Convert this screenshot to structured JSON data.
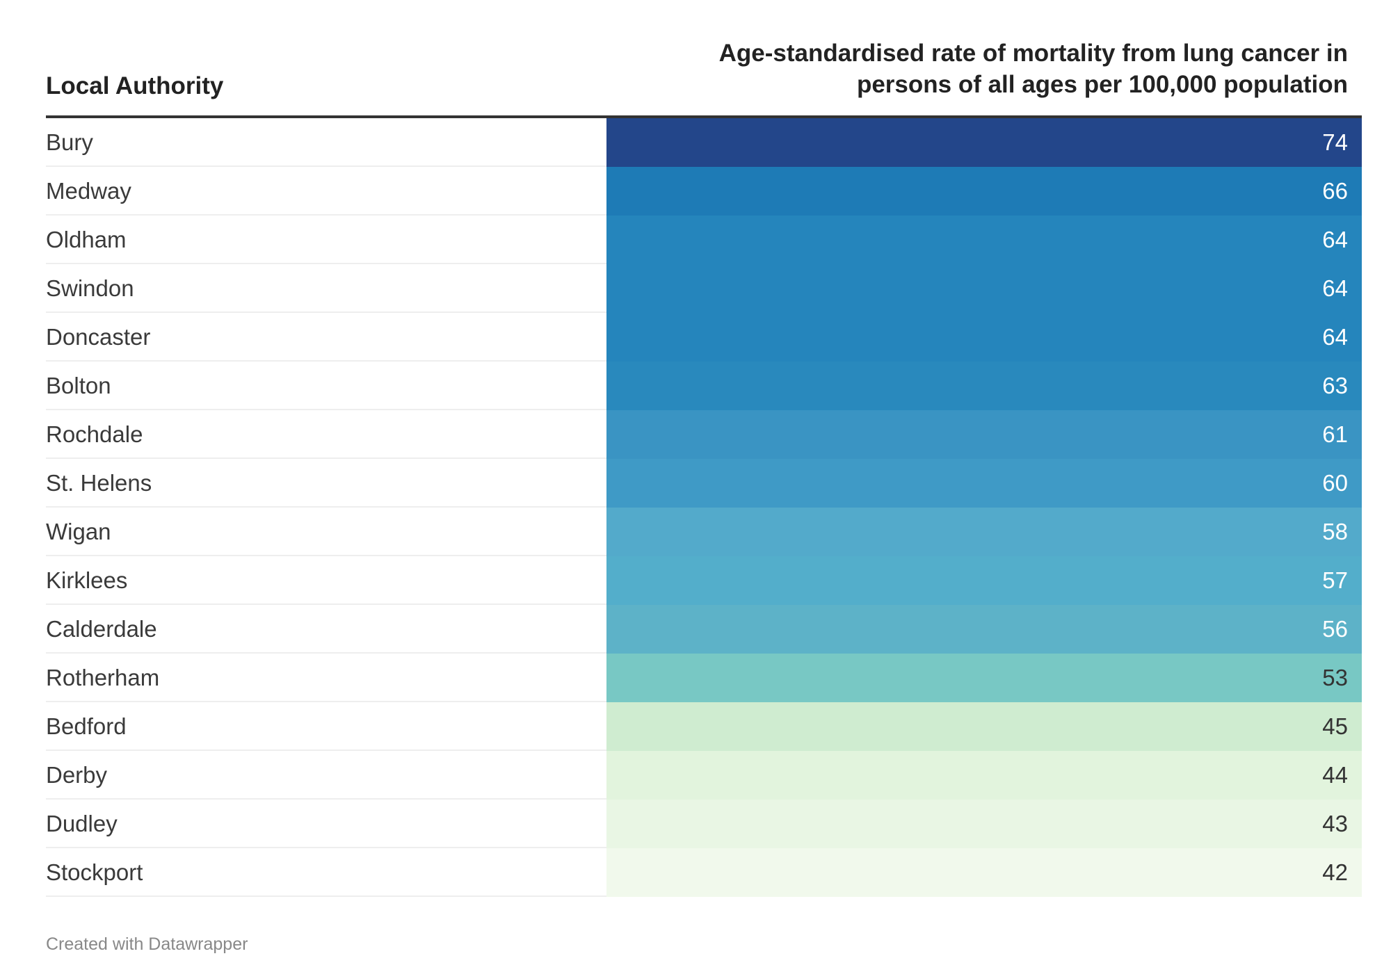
{
  "table": {
    "header_label": "Local Authority",
    "header_value_line1": "Age-standardised rate of mortality from lung cancer in",
    "header_value_line2": "persons of all ages per 100,000 population"
  },
  "chart_data": {
    "type": "table",
    "title": "",
    "columns": [
      "Local Authority",
      "Age-standardised rate of mortality from lung cancer in persons of all ages per 100,000 population"
    ],
    "categories": [
      "Bury",
      "Medway",
      "Oldham",
      "Swindon",
      "Doncaster",
      "Bolton",
      "Rochdale",
      "St. Helens",
      "Wigan",
      "Kirklees",
      "Calderdale",
      "Rotherham",
      "Bedford",
      "Derby",
      "Dudley",
      "Stockport"
    ],
    "values": [
      74,
      66,
      64,
      64,
      64,
      63,
      61,
      60,
      58,
      57,
      56,
      53,
      45,
      44,
      43,
      42
    ],
    "colors": [
      "#23468a",
      "#1e7bb6",
      "#2585bc",
      "#2585bc",
      "#2585bc",
      "#2989bd",
      "#3a94c3",
      "#3f9ac6",
      "#53aacb",
      "#53aecb",
      "#5db2c8",
      "#78c8c4",
      "#cfecd0",
      "#e2f4dd",
      "#e9f6e4",
      "#f1f9ec"
    ],
    "text_colors": [
      "#ffffff",
      "#ffffff",
      "#ffffff",
      "#ffffff",
      "#ffffff",
      "#ffffff",
      "#ffffff",
      "#ffffff",
      "#ffffff",
      "#ffffff",
      "#ffffff",
      "#333333",
      "#333333",
      "#333333",
      "#333333",
      "#333333"
    ]
  },
  "footer": {
    "credit": "Created with Datawrapper"
  }
}
